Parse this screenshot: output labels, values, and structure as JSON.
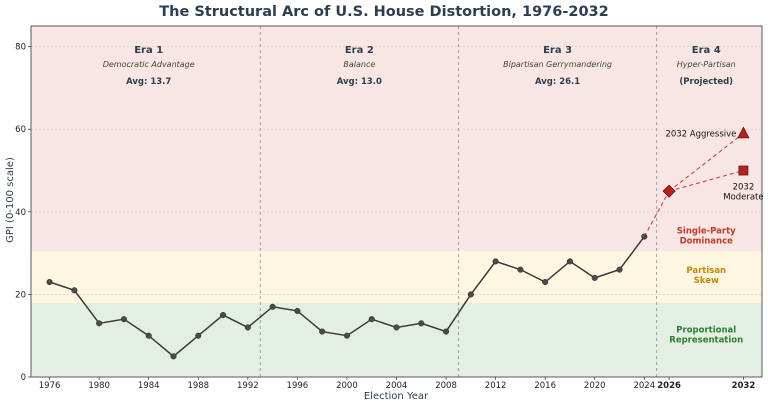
{
  "chart_data": {
    "type": "line",
    "title": "The Structural Arc of U.S. House Distortion, 1976-2032",
    "xlabel": "Election Year",
    "ylabel": "GPI (0-100 scale)",
    "xlim": [
      1974.5,
      2033.5
    ],
    "ylim": [
      0,
      85
    ],
    "x_ticks": [
      1976,
      1980,
      1984,
      1988,
      1992,
      1996,
      2000,
      2004,
      2008,
      2012,
      2016,
      2020,
      2024
    ],
    "x_ticks_highlight": [
      2026,
      2032
    ],
    "highlight_color": "#c0392b",
    "y_ticks": [
      0,
      20,
      40,
      60,
      80
    ],
    "grid": true,
    "series": [
      {
        "x": [
          1976,
          1978,
          1980,
          1982,
          1984,
          1986,
          1988,
          1990,
          1992,
          1994,
          1996,
          1998,
          2000,
          2002,
          2004,
          2006,
          2008,
          2010,
          2012,
          2014,
          2016,
          2018,
          2020,
          2022,
          2024
        ],
        "y": [
          23,
          21,
          13,
          14,
          10,
          5,
          10,
          15,
          12,
          17,
          16,
          11,
          10,
          14,
          12,
          13,
          11,
          20,
          28,
          26,
          23,
          28,
          24,
          26,
          34
        ],
        "color": "#3a3a3a"
      }
    ],
    "projections": [
      {
        "x": [
          2024,
          2026
        ],
        "y": [
          34,
          45
        ]
      },
      {
        "x": [
          2026,
          2032
        ],
        "y": [
          45,
          59
        ]
      },
      {
        "x": [
          2026,
          2032
        ],
        "y": [
          45,
          50
        ]
      }
    ],
    "projection_points": [
      {
        "x": 2026,
        "y": 45,
        "marker": "diamond",
        "label": "",
        "label_lines": []
      },
      {
        "x": 2032,
        "y": 59,
        "marker": "triangle",
        "label": "2032 Aggressive",
        "label_lines": []
      },
      {
        "x": 2032,
        "y": 50,
        "marker": "square",
        "label": "",
        "label_lines": [
          "2032",
          "Moderate"
        ]
      }
    ],
    "era_dividers": [
      1993,
      2009,
      2025
    ],
    "eras": [
      {
        "name": "Era 1",
        "desc": "Democratic Advantage",
        "avg": "Avg: 13.7",
        "center": 1984
      },
      {
        "name": "Era 2",
        "desc": "Balance",
        "avg": "Avg: 13.0",
        "center": 2001
      },
      {
        "name": "Era 3",
        "desc": "Bipartisan Gerrymandering",
        "avg": "Avg: 26.1",
        "center": 2017
      },
      {
        "name": "Era 4",
        "desc": "Hyper-Partisan",
        "avg": "(Projected)",
        "center": 2029
      }
    ],
    "zones": [
      {
        "label_lines": [
          "Proportional",
          "Representation"
        ],
        "from": 0,
        "to": 18,
        "color": "#e4efe3",
        "text_color": "#2e7d32",
        "label_y": 10
      },
      {
        "label_lines": [
          "Partisan",
          "Skew"
        ],
        "from": 18,
        "to": 30.5,
        "color": "#fdf6e1",
        "text_color": "#c8860a",
        "label_y": 24.5
      },
      {
        "label_lines": [
          "Single-Party",
          "Dominance"
        ],
        "from": 30.5,
        "to": 85,
        "color": "#f8e6e4",
        "text_color": "#c0392b",
        "label_y": 34
      }
    ],
    "zone_label_x": 2029,
    "projection_color": "#b22222"
  }
}
